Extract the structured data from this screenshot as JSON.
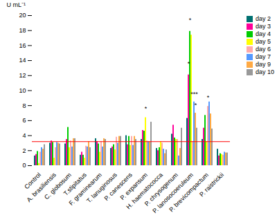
{
  "chart_data": {
    "type": "bar",
    "categories": [
      "Control",
      "A. brasiliensis",
      "C. globosum",
      "T.stipitatus",
      "F. graminearum",
      "T. lanuginosus",
      "P. canescens",
      "P. expansum",
      "H. haematococca",
      "P. chrysogenum",
      "P. lanosocoeruleum",
      "P. brevicompactum",
      "P. raistrickii"
    ],
    "series": [
      {
        "name": "day 2",
        "color": "#007070",
        "values": [
          1.3,
          3.0,
          2.9,
          1.4,
          3.6,
          2.3,
          4.0,
          3.5,
          2.3,
          4.2,
          6.3,
          3.5,
          2.2
        ]
      },
      {
        "name": "day 3",
        "color": "#FF0099",
        "values": [
          1.5,
          3.3,
          3.5,
          1.8,
          3.2,
          2.5,
          2.8,
          4.7,
          2.0,
          5.4,
          12.1,
          5.0,
          1.3
        ]
      },
      {
        "name": "day 4",
        "color": "#00CC00",
        "values": [
          1.9,
          3.1,
          5.1,
          1.4,
          2.9,
          2.8,
          3.9,
          4.6,
          2.4,
          3.7,
          17.9,
          6.7,
          1.6
        ]
      },
      {
        "name": "day 5",
        "color": "#FFFF00",
        "values": [
          0.3,
          1.0,
          2.4,
          1.0,
          1.8,
          2.1,
          2.7,
          6.4,
          3.2,
          3.5,
          17.4,
          3.2,
          1.5
        ]
      },
      {
        "name": "day 6",
        "color": "#FFAAAA",
        "values": [
          1.8,
          2.4,
          3.3,
          2.6,
          3.2,
          3.8,
          3.9,
          3.3,
          3.0,
          3.5,
          3.2,
          7.9,
          1.4
        ]
      },
      {
        "name": "day 7",
        "color": "#5599FF",
        "values": [
          2.4,
          3.1,
          2.5,
          2.5,
          2.5,
          3.0,
          2.7,
          3.2,
          2.2,
          1.3,
          8.5,
          8.5,
          1.8
        ]
      },
      {
        "name": "day 9",
        "color": "#FFAA44",
        "values": [
          2.2,
          3.0,
          3.6,
          3.2,
          3.6,
          3.9,
          3.9,
          3.2,
          1.6,
          2.3,
          7.0,
          6.9,
          1.7
        ]
      },
      {
        "name": "day 10",
        "color": "#999999",
        "values": [
          2.8,
          2.9,
          3.6,
          2.4,
          3.5,
          3.9,
          3.5,
          5.8,
          2.1,
          5.0,
          5.0,
          4.9,
          1.7
        ]
      }
    ],
    "annotations": [
      {
        "category": "P. expansum",
        "series": "day 5",
        "y": 7.2,
        "text": "*"
      },
      {
        "category": "P. lanosocoeruleum",
        "series": "day 4",
        "y": 19.0,
        "text": "*"
      },
      {
        "category": "P. lanosocoeruleum",
        "series": "day 3",
        "y": 13.2,
        "text": "*"
      },
      {
        "category": "P. lanosocoeruleum",
        "series": "day 7",
        "y": 9.2,
        "text": "***"
      },
      {
        "category": "P. lanosocoeruleum",
        "series": "day 9",
        "y": 7.7,
        "text": "*"
      },
      {
        "category": "P. brevicompactum",
        "series": "day 6",
        "y": 8.7,
        "text": "*"
      }
    ],
    "reference_lines": [
      {
        "y": 3.2,
        "color": "#FF0000"
      }
    ],
    "ylabel": "U mL⁻¹",
    "ylim": [
      0,
      20
    ],
    "yticks": [
      0,
      2,
      4,
      6,
      8,
      10,
      12,
      14,
      16,
      18,
      20
    ],
    "legend": "upper right",
    "grid": false
  }
}
